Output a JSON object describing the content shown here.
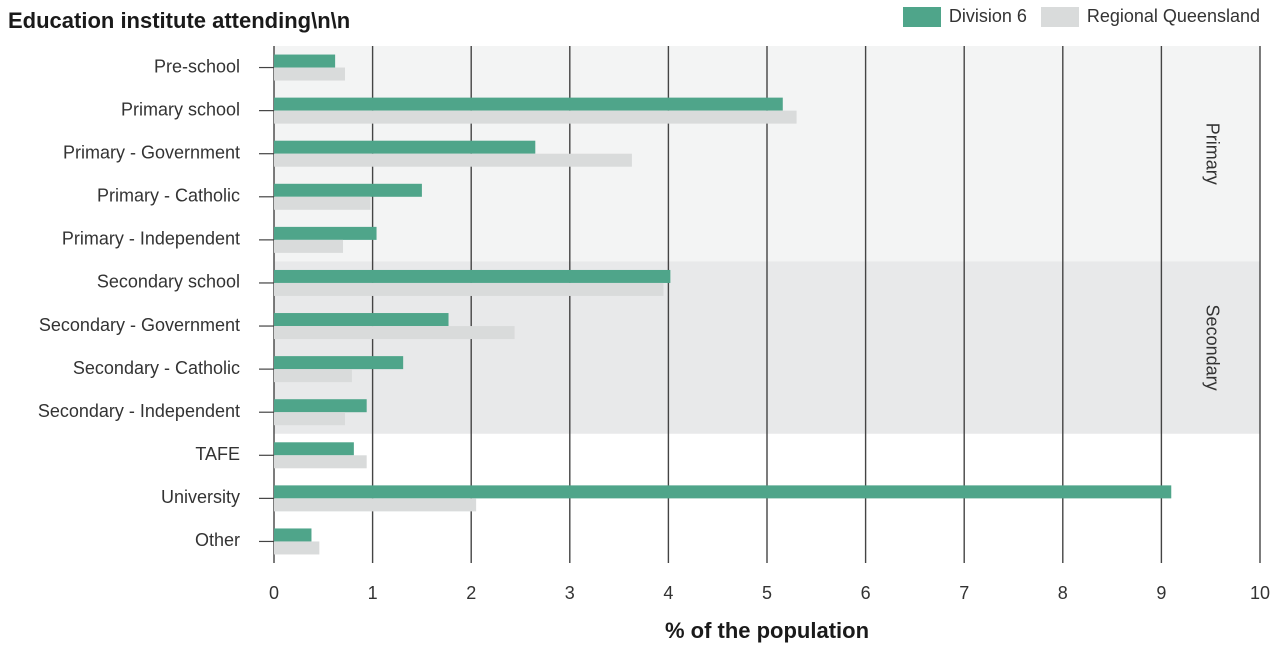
{
  "title": "Education institute attending\\n\\n",
  "legend": [
    {
      "name": "Division 6",
      "color": "#4fa58a"
    },
    {
      "name": "Regional Queensland",
      "color": "#d9dbdb"
    }
  ],
  "bands": [
    {
      "label": "Primary",
      "from": "Pre-school",
      "to": "Primary - Independent",
      "color": "#f3f4f4"
    },
    {
      "label": "Secondary",
      "from": "Secondary school",
      "to": "Secondary - Independent",
      "color": "#e8e9ea"
    }
  ],
  "chart_data": {
    "type": "bar",
    "orientation": "horizontal",
    "title": "Education institute attending\\n\\n",
    "xlabel": "% of the population",
    "ylabel": "",
    "xlim": [
      0,
      10
    ],
    "xticks": [
      0,
      1,
      2,
      3,
      4,
      5,
      6,
      7,
      8,
      9,
      10
    ],
    "grid": "vertical",
    "legend_position": "top-right",
    "categories": [
      "Pre-school",
      "Primary school",
      "Primary - Government",
      "Primary - Catholic",
      "Primary - Independent",
      "Secondary school",
      "Secondary - Government",
      "Secondary - Catholic",
      "Secondary - Independent",
      "TAFE",
      "University",
      "Other"
    ],
    "series": [
      {
        "name": "Division 6",
        "color": "#4fa58a",
        "values": [
          0.62,
          5.16,
          2.65,
          1.5,
          1.04,
          4.02,
          1.77,
          1.31,
          0.94,
          0.81,
          9.1,
          0.38
        ]
      },
      {
        "name": "Regional Queensland",
        "color": "#d9dbdb",
        "values": [
          0.72,
          5.3,
          3.63,
          0.98,
          0.7,
          3.95,
          2.44,
          0.79,
          0.72,
          0.94,
          2.05,
          0.46
        ]
      }
    ]
  }
}
